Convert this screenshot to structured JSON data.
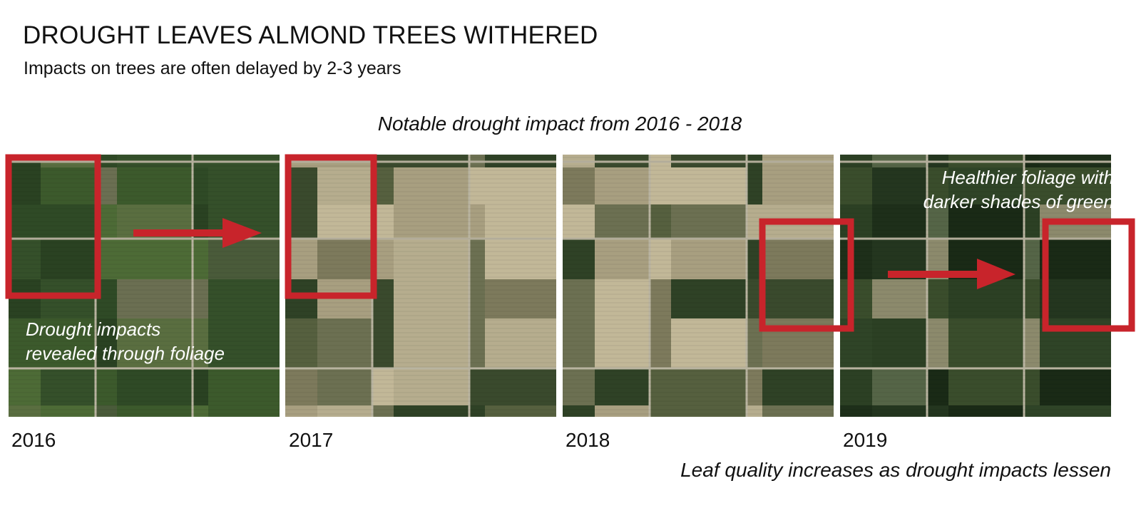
{
  "title": "DROUGHT LEAVES ALMOND TREES WITHERED",
  "subtitle": "Impacts on trees are often delayed by 2-3 years",
  "mid_caption": "Notable drought impact from 2016 - 2018",
  "bottom_caption": "Leaf quality increases as drought impacts lessen",
  "panels": [
    {
      "year": "2016",
      "tone": "green"
    },
    {
      "year": "2017",
      "tone": "dry"
    },
    {
      "year": "2018",
      "tone": "dry"
    },
    {
      "year": "2019",
      "tone": "dark"
    }
  ],
  "annotations": {
    "drought_note_line1": "Drought impacts",
    "drought_note_line2": "revealed through foliage",
    "healthier_line1": "Healthier foliage with",
    "healthier_line2": "darker shades of green"
  },
  "colors": {
    "highlight_red": "#c8242b",
    "text": "#111111",
    "overlay_text": "#ffffff"
  }
}
